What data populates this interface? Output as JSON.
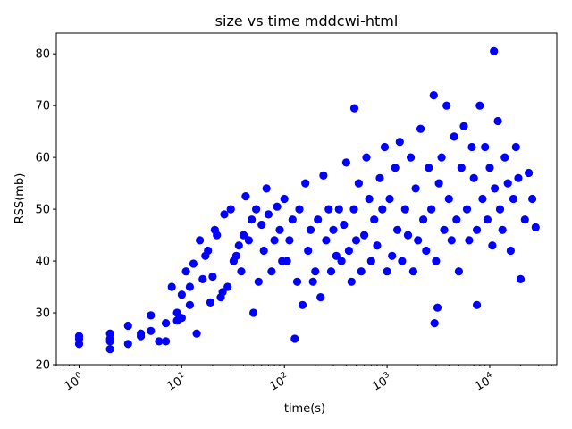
{
  "chart_data": {
    "type": "scatter",
    "title": "size vs time mddcwi-html",
    "xlabel": "time(s)",
    "ylabel": "RSS(mb)",
    "x_scale": "log",
    "xlim": [
      0.6,
      45000
    ],
    "ylim": [
      20,
      84
    ],
    "x_ticks": [
      {
        "base": "10",
        "exp": "0"
      },
      {
        "base": "10",
        "exp": "1"
      },
      {
        "base": "10",
        "exp": "2"
      },
      {
        "base": "10",
        "exp": "3"
      },
      {
        "base": "10",
        "exp": "4"
      }
    ],
    "y_ticks": [
      "20",
      "30",
      "40",
      "50",
      "60",
      "70",
      "80"
    ],
    "marker_color": "#0000ff",
    "grid": false,
    "legend": "none",
    "x": [
      1,
      1,
      1,
      2,
      2,
      2,
      2,
      3,
      3,
      4,
      4,
      5,
      5,
      6,
      7,
      7,
      8,
      9,
      9,
      10,
      10,
      11,
      12,
      12,
      13,
      14,
      15,
      16,
      17,
      18,
      19,
      20,
      21,
      22,
      24,
      25,
      26,
      28,
      30,
      32,
      34,
      36,
      38,
      40,
      42,
      45,
      48,
      50,
      53,
      56,
      60,
      63,
      67,
      70,
      75,
      80,
      85,
      90,
      95,
      100,
      106,
      112,
      120,
      126,
      133,
      140,
      150,
      160,
      170,
      180,
      190,
      200,
      212,
      225,
      240,
      255,
      270,
      285,
      300,
      320,
      340,
      360,
      380,
      400,
      425,
      450,
      475,
      500,
      530,
      560,
      600,
      630,
      670,
      700,
      750,
      800,
      850,
      900,
      950,
      1000,
      1060,
      1120,
      1200,
      1260,
      1330,
      1400,
      1500,
      1600,
      1700,
      1800,
      1900,
      2000,
      2120,
      2250,
      2400,
      2550,
      2700,
      2850,
      3000,
      3200,
      3400,
      3600,
      3800,
      4000,
      4250,
      4500,
      4750,
      5000,
      5300,
      5600,
      6000,
      6300,
      6700,
      7000,
      7500,
      8000,
      8500,
      9000,
      9500,
      10000,
      10600,
      11200,
      12000,
      12600,
      13300,
      14000,
      15000,
      16000,
      17000,
      18000,
      19000,
      20000,
      22000,
      24000,
      26000,
      28000,
      11000,
      480,
      2900,
      3100,
      7500
    ],
    "y": [
      25.5,
      24,
      25,
      23,
      26,
      25,
      24.5,
      24,
      27.5,
      26,
      25.5,
      26.5,
      29.5,
      24.5,
      24.5,
      28,
      35,
      28.5,
      30,
      29,
      33.5,
      38,
      31.5,
      35,
      39.5,
      26,
      44,
      36.5,
      41,
      42,
      32,
      37,
      46,
      45,
      33,
      34,
      49,
      35,
      50,
      40,
      41,
      43,
      38,
      45,
      52.5,
      44,
      48,
      30,
      50,
      36,
      47,
      42,
      54,
      49,
      38,
      44,
      50.5,
      46,
      40,
      52,
      40,
      44,
      48,
      25,
      36,
      50,
      31.5,
      55,
      42,
      46,
      36,
      38,
      48,
      33,
      56.5,
      44,
      50,
      38,
      46,
      41,
      50,
      40,
      47,
      59,
      42,
      36,
      50,
      44,
      55,
      38,
      45,
      60,
      52,
      40,
      48,
      43,
      56,
      50,
      62,
      38,
      52,
      41,
      58,
      46,
      63,
      40,
      50,
      45,
      60,
      38,
      54,
      44,
      65.5,
      48,
      42,
      58,
      50,
      72,
      40,
      55,
      60,
      46,
      70,
      52,
      44,
      64,
      48,
      38,
      58,
      66,
      50,
      44,
      62,
      56,
      46,
      70,
      52,
      62,
      48,
      58,
      43,
      54,
      67,
      50,
      46,
      60,
      55,
      42,
      52,
      62,
      56,
      36.5,
      48,
      57,
      52,
      46.5,
      80.5,
      69.5,
      28,
      31,
      31.5
    ]
  }
}
